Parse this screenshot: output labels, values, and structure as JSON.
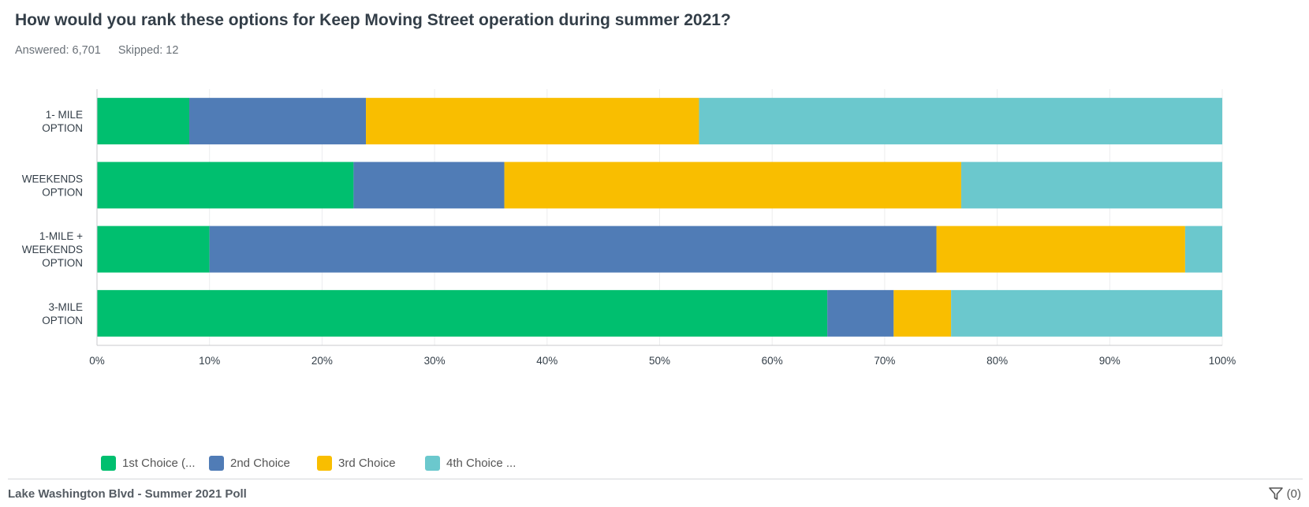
{
  "header": {
    "question": "How would you rank these options for Keep Moving Street operation during summer 2021?",
    "answered": "Answered: 6,701",
    "skipped": "Skipped: 12"
  },
  "chart_data": {
    "type": "bar",
    "orientation": "horizontal",
    "stacked": true,
    "categories": [
      [
        "1- MILE",
        "OPTION"
      ],
      [
        "WEEKENDS",
        "OPTION"
      ],
      [
        "1-MILE +",
        "WEEKENDS",
        "OPTION"
      ],
      [
        "3-MILE",
        "OPTION"
      ]
    ],
    "series": [
      {
        "name": "1st Choice (...",
        "color": "#00bf6f",
        "values": [
          8.2,
          22.8,
          10.0,
          64.9
        ]
      },
      {
        "name": "2nd Choice",
        "color": "#507cb6",
        "values": [
          15.7,
          13.4,
          64.6,
          5.9
        ]
      },
      {
        "name": "3rd Choice",
        "color": "#f9be00",
        "values": [
          29.6,
          40.6,
          22.1,
          5.1
        ]
      },
      {
        "name": "4th Choice ...",
        "color": "#6bc8cd",
        "values": [
          46.5,
          23.2,
          3.3,
          24.1
        ]
      }
    ],
    "xlim": [
      0,
      100
    ],
    "x_ticks": [
      "0%",
      "10%",
      "20%",
      "30%",
      "40%",
      "50%",
      "60%",
      "70%",
      "80%",
      "90%",
      "100%"
    ],
    "grid": true,
    "legend_position": "bottom-left"
  },
  "footer": {
    "survey_name": "Lake Washington Blvd - Summer 2021 Poll",
    "filter_count": "(0)"
  }
}
